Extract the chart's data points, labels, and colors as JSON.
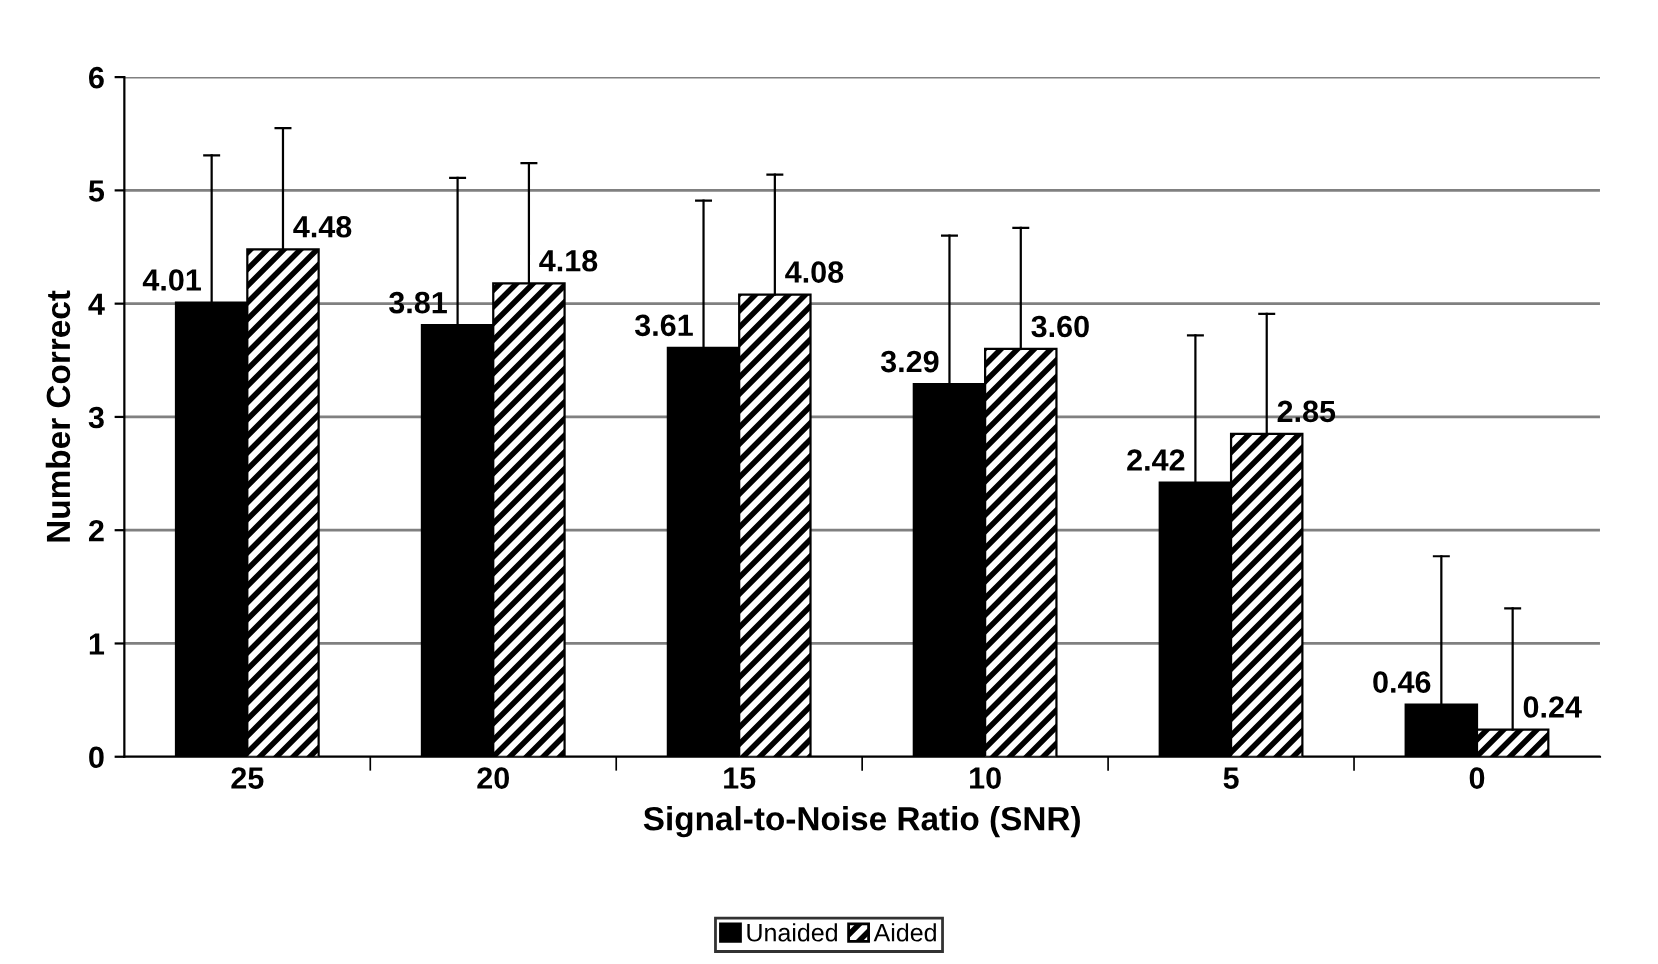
{
  "chart_data": {
    "type": "bar",
    "xlabel": "Signal-to-Noise Ratio (SNR)",
    "ylabel": "Number Correct",
    "categories": [
      "25",
      "20",
      "15",
      "10",
      "5",
      "0"
    ],
    "series": [
      {
        "name": "Unaided",
        "color": "#000000",
        "values": [
          4.01,
          3.81,
          3.61,
          3.29,
          2.42,
          0.46
        ],
        "value_labels": [
          "4.01",
          "3.81",
          "3.61",
          "3.29",
          "2.42",
          "0.46"
        ],
        "errors": [
          [
            4.01,
            5.31
          ],
          [
            3.81,
            5.11
          ],
          [
            3.61,
            4.91
          ],
          [
            3.29,
            4.6
          ],
          [
            2.42,
            3.72
          ],
          [
            0.46,
            1.77
          ]
        ]
      },
      {
        "name": "Aided",
        "color": "#000000",
        "values": [
          4.48,
          4.18,
          4.08,
          3.6,
          2.85,
          0.24
        ],
        "value_labels": [
          "4.48",
          "4.18",
          "4.08",
          "3.60",
          "2.85",
          "0.24"
        ],
        "errors": [
          [
            4.48,
            5.55
          ],
          [
            4.18,
            5.24
          ],
          [
            4.08,
            5.14
          ],
          [
            3.6,
            4.67
          ],
          [
            2.85,
            3.91
          ],
          [
            0.24,
            1.31
          ]
        ]
      }
    ],
    "ylim": [
      0,
      6
    ],
    "yticks": [
      0,
      1,
      2,
      3,
      4,
      5,
      6
    ],
    "grid": "y",
    "legend": "bottom"
  }
}
